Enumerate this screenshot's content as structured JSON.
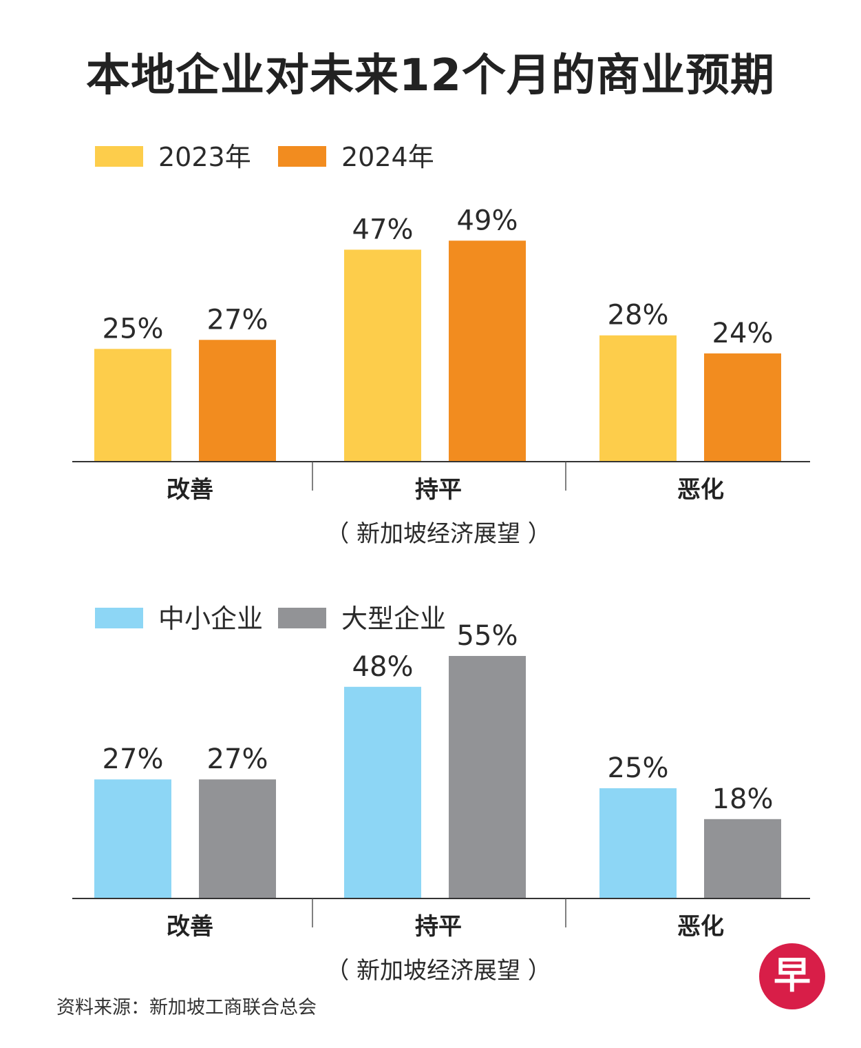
{
  "title": "本地企业对未来12个月的商业预期",
  "source": "资料来源：新加坡工商联合总会",
  "logo": {
    "icon": "zaobao-logo-icon",
    "text": "早",
    "color": "#d81e48"
  },
  "chart_data": [
    {
      "type": "bar",
      "categories": [
        "改善",
        "持平",
        "恶化"
      ],
      "category_subtitle": {
        "持平": "（ 新加坡经济展望 ）"
      },
      "legend_placement": "top-left",
      "grid": false,
      "ylim": [
        0,
        55
      ],
      "series": [
        {
          "name": "2023年",
          "color": "#fdcd4b",
          "values": [
            25,
            47,
            28
          ],
          "labels": [
            "25%",
            "47%",
            "28%"
          ]
        },
        {
          "name": "2024年",
          "color": "#f28c1f",
          "values": [
            27,
            49,
            24
          ],
          "labels": [
            "27%",
            "49%",
            "24%"
          ]
        }
      ]
    },
    {
      "type": "bar",
      "categories": [
        "改善",
        "持平",
        "恶化"
      ],
      "category_subtitle": {
        "持平": "（ 新加坡经济展望 ）"
      },
      "legend_placement": "top-left",
      "grid": false,
      "ylim": [
        0,
        55
      ],
      "series": [
        {
          "name": "中小企业",
          "color": "#8dd6f5",
          "values": [
            27,
            48,
            25
          ],
          "labels": [
            "27%",
            "48%",
            "25%"
          ]
        },
        {
          "name": "大型企业",
          "color": "#929396",
          "values": [
            27,
            55,
            18
          ],
          "labels": [
            "27%",
            "55%",
            "18%"
          ]
        }
      ]
    }
  ]
}
